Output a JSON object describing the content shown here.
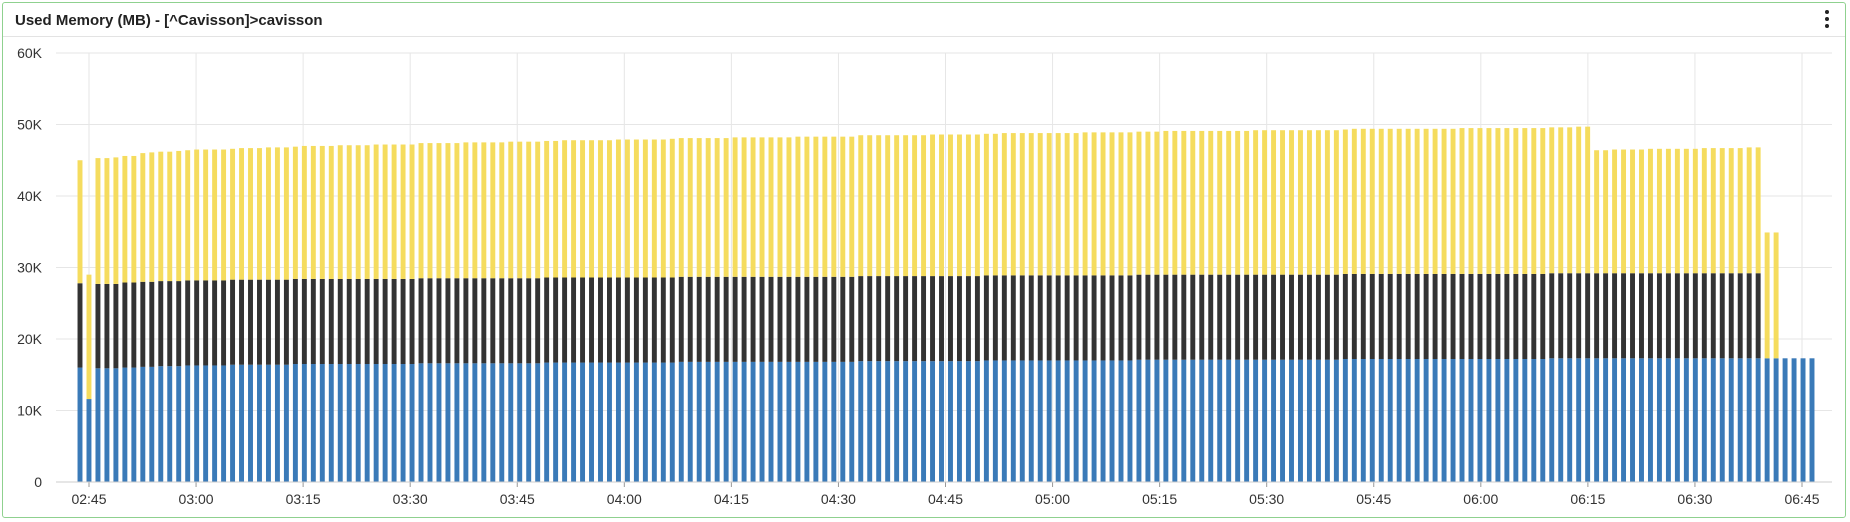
{
  "panel": {
    "title": "Used Memory (MB) - [^Cavisson]>cavisson"
  },
  "colors": {
    "blue": "#3a7ab8",
    "dark": "#333333",
    "yellow": "#f5dc5e",
    "grid": "#e6e6e6"
  },
  "chart_data": {
    "type": "bar",
    "stacked": true,
    "grid": true,
    "legend": "none",
    "ylim": [
      0,
      60000
    ],
    "y_ticks": [
      0,
      10000,
      20000,
      30000,
      40000,
      50000,
      60000
    ],
    "y_tick_labels": [
      "0",
      "10K",
      "20K",
      "30K",
      "40K",
      "50K",
      "60K"
    ],
    "x_time_range": [
      "02:45",
      "06:45"
    ],
    "x_ticks": [
      "02:45",
      "03:00",
      "03:15",
      "03:30",
      "03:45",
      "04:00",
      "04:15",
      "04:30",
      "04:45",
      "05:00",
      "05:15",
      "05:30",
      "05:45",
      "06:00",
      "06:15",
      "06:30",
      "06:45"
    ],
    "series": [
      {
        "values": [
          16000,
          11600,
          15900,
          15900,
          15900,
          16000,
          16000,
          16100,
          16100,
          16200,
          16200,
          16200,
          16300,
          16300,
          16300,
          16300,
          16300,
          16400,
          16400,
          16400,
          16400,
          16400,
          16400,
          16400,
          16500,
          16500,
          16500,
          16500,
          16500,
          16500,
          16500,
          16500,
          16500,
          16500,
          16500,
          16500,
          16500,
          16500,
          16600,
          16600,
          16600,
          16600,
          16600,
          16600,
          16600,
          16600,
          16600,
          16600,
          16600,
          16600,
          16600,
          16600,
          16700,
          16700,
          16700,
          16700,
          16700,
          16700,
          16700,
          16700,
          16700,
          16700,
          16700,
          16700,
          16700,
          16700,
          16700,
          16800,
          16800,
          16800,
          16800,
          16800,
          16800,
          16800,
          16800,
          16800,
          16800,
          16800,
          16800,
          16800,
          16800,
          16800,
          16800,
          16800,
          16800,
          16800,
          16800,
          16900,
          16900,
          16900,
          16900,
          16900,
          16900,
          16900,
          16900,
          16900,
          16900,
          16900,
          16900,
          16900,
          16900,
          17000,
          17000,
          17000,
          17000,
          17000,
          17000,
          17000,
          17000,
          17000,
          17000,
          17000,
          17000,
          17000,
          17000,
          17000,
          17000,
          17000,
          17100,
          17100,
          17100,
          17100,
          17100,
          17100,
          17100,
          17100,
          17100,
          17100,
          17100,
          17100,
          17100,
          17100,
          17100,
          17100,
          17100,
          17100,
          17100,
          17100,
          17100,
          17100,
          17100,
          17200,
          17200,
          17200,
          17200,
          17200,
          17200,
          17200,
          17200,
          17200,
          17200,
          17200,
          17200,
          17200,
          17200,
          17200,
          17200,
          17200,
          17200,
          17200,
          17200,
          17200,
          17200,
          17200,
          17300,
          17300,
          17300,
          17300,
          17300,
          17300,
          17300,
          17300,
          17300,
          17300,
          17300,
          17300,
          17300,
          17300,
          17300,
          17300,
          17300,
          17300,
          17300,
          17300,
          17300,
          17300,
          17300,
          17300,
          17300,
          17300,
          17300,
          17300,
          17300,
          17300
        ]
      },
      {
        "values": [
          11800,
          0,
          11800,
          11800,
          11800,
          11900,
          11900,
          11900,
          11900,
          11900,
          11900,
          11900,
          11900,
          11900,
          11900,
          11900,
          11900,
          11900,
          11900,
          11900,
          11900,
          11900,
          11900,
          11900,
          11900,
          11900,
          11900,
          11900,
          11900,
          11900,
          11900,
          11900,
          11900,
          11900,
          11900,
          11900,
          11900,
          11900,
          11900,
          11900,
          11900,
          11900,
          11900,
          11900,
          11900,
          11900,
          11900,
          11900,
          11900,
          11900,
          11900,
          11900,
          11900,
          11900,
          11900,
          11900,
          11900,
          11900,
          11900,
          11900,
          11900,
          11900,
          11900,
          11900,
          11900,
          11900,
          11900,
          11900,
          11900,
          11900,
          11900,
          11900,
          11900,
          11900,
          11900,
          11900,
          11900,
          11900,
          11900,
          11900,
          11900,
          11900,
          11900,
          11900,
          11900,
          11900,
          11900,
          11900,
          11900,
          11900,
          11900,
          11900,
          11900,
          11900,
          11900,
          11900,
          11900,
          11900,
          11900,
          11900,
          11900,
          11900,
          11900,
          11900,
          11900,
          11900,
          11900,
          11900,
          11900,
          11900,
          11900,
          11900,
          11900,
          11900,
          11900,
          11900,
          11900,
          11900,
          11900,
          11900,
          11900,
          11900,
          11900,
          11900,
          11900,
          11900,
          11900,
          11900,
          11900,
          11900,
          11900,
          11900,
          11900,
          11900,
          11900,
          11900,
          11900,
          11900,
          11900,
          11900,
          11900,
          11900,
          11900,
          11900,
          11900,
          11900,
          11900,
          11900,
          11900,
          11900,
          11900,
          11900,
          11900,
          11900,
          11900,
          11900,
          11900,
          11900,
          11900,
          11900,
          11900,
          11900,
          11900,
          11900,
          11900,
          11900,
          11900,
          11900,
          11900,
          11900,
          11900,
          11900,
          11900,
          11900,
          11900,
          11900,
          11900,
          11900,
          11900,
          11900,
          11900,
          11900,
          11900,
          11900,
          11900,
          11900,
          11900,
          11900
        ]
      },
      {
        "values": [
          17200,
          17400,
          17600,
          17600,
          17700,
          17700,
          17700,
          18000,
          18100,
          18100,
          18100,
          18200,
          18200,
          18300,
          18300,
          18300,
          18300,
          18300,
          18400,
          18400,
          18400,
          18500,
          18500,
          18500,
          18500,
          18600,
          18600,
          18600,
          18600,
          18700,
          18700,
          18700,
          18700,
          18800,
          18800,
          18800,
          18800,
          18800,
          18900,
          18900,
          18900,
          18900,
          18900,
          19000,
          19000,
          19000,
          19000,
          19000,
          19100,
          19100,
          19100,
          19100,
          19100,
          19100,
          19200,
          19200,
          19200,
          19200,
          19200,
          19200,
          19300,
          19300,
          19300,
          19300,
          19300,
          19300,
          19400,
          19400,
          19400,
          19400,
          19400,
          19400,
          19400,
          19500,
          19500,
          19500,
          19500,
          19500,
          19500,
          19500,
          19600,
          19600,
          19600,
          19600,
          19600,
          19600,
          19600,
          19700,
          19700,
          19700,
          19700,
          19700,
          19700,
          19700,
          19700,
          19800,
          19800,
          19800,
          19800,
          19800,
          19800,
          19800,
          19800,
          19900,
          19900,
          19900,
          19900,
          19900,
          19900,
          19900,
          19900,
          19900,
          20000,
          20000,
          20000,
          20000,
          20000,
          20000,
          20000,
          20000,
          20000,
          20100,
          20100,
          20100,
          20100,
          20100,
          20100,
          20100,
          20100,
          20100,
          20100,
          20200,
          20200,
          20200,
          20200,
          20200,
          20200,
          20200,
          20200,
          20200,
          20200,
          20200,
          20300,
          20300,
          20300,
          20300,
          20300,
          20300,
          20300,
          20300,
          20300,
          20300,
          20300,
          20300,
          20400,
          20400,
          20400,
          20400,
          20400,
          20400,
          20400,
          20400,
          20400,
          20400,
          20400,
          20400,
          20400,
          20500,
          20500,
          17200,
          17200,
          17300,
          17300,
          17300,
          17300,
          17400,
          17400,
          17400,
          17400,
          17400,
          17400,
          17500,
          17500,
          17500,
          17500,
          17500,
          17600,
          17600,
          17600,
          17600
        ]
      }
    ]
  }
}
